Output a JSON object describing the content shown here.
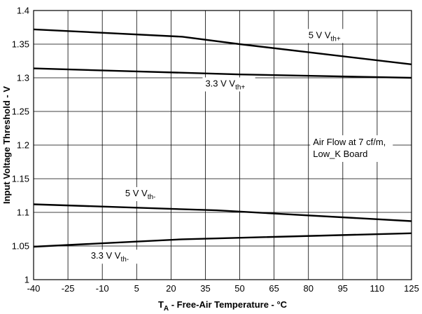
{
  "chart_data": {
    "type": "line",
    "xlabel": {
      "main": "T",
      "sub": "A",
      "rest": " - Free-Air Temperature - °C"
    },
    "ylabel": "Input Voltage Threshold - V",
    "xlim": [
      -40,
      125
    ],
    "ylim": [
      1,
      1.4
    ],
    "x_ticks": [
      "-40",
      "-25",
      "-10",
      "5",
      "20",
      "35",
      "50",
      "65",
      "80",
      "95",
      "110",
      "125"
    ],
    "y_ticks": [
      "1",
      "1.05",
      "1.1",
      "1.15",
      "1.2",
      "1.25",
      "1.3",
      "1.35",
      "1.4"
    ],
    "grid": true,
    "series": [
      {
        "name": "5 V Vth+",
        "points": [
          [
            -40,
            1.372
          ],
          [
            25,
            1.361
          ],
          [
            50,
            1.35
          ],
          [
            125,
            1.32
          ]
        ]
      },
      {
        "name": "3.3 V Vth+",
        "points": [
          [
            -40,
            1.314
          ],
          [
            0,
            1.31
          ],
          [
            50,
            1.305
          ],
          [
            125,
            1.3
          ]
        ]
      },
      {
        "name": "5 V Vth-",
        "points": [
          [
            -40,
            1.112
          ],
          [
            40,
            1.103
          ],
          [
            125,
            1.087
          ]
        ]
      },
      {
        "name": "3.3 V Vth-",
        "points": [
          [
            -40,
            1.049
          ],
          [
            25,
            1.06
          ],
          [
            125,
            1.069
          ]
        ]
      }
    ],
    "annotations": [
      {
        "main": "5 V V",
        "sub": "th+",
        "at": [
          80,
          1.359
        ]
      },
      {
        "main": "3.3 V V",
        "sub": "th+",
        "at": [
          35,
          1.287
        ]
      },
      {
        "main": "5 V V",
        "sub": "th-",
        "at": [
          0,
          1.124
        ]
      },
      {
        "main": "3.3 V V",
        "sub": "th-",
        "at": [
          -15,
          1.031
        ]
      }
    ],
    "note": [
      "Air Flow at 7 cf/m,",
      "Low_K Board"
    ],
    "note_at": [
      82,
      1.2
    ]
  }
}
